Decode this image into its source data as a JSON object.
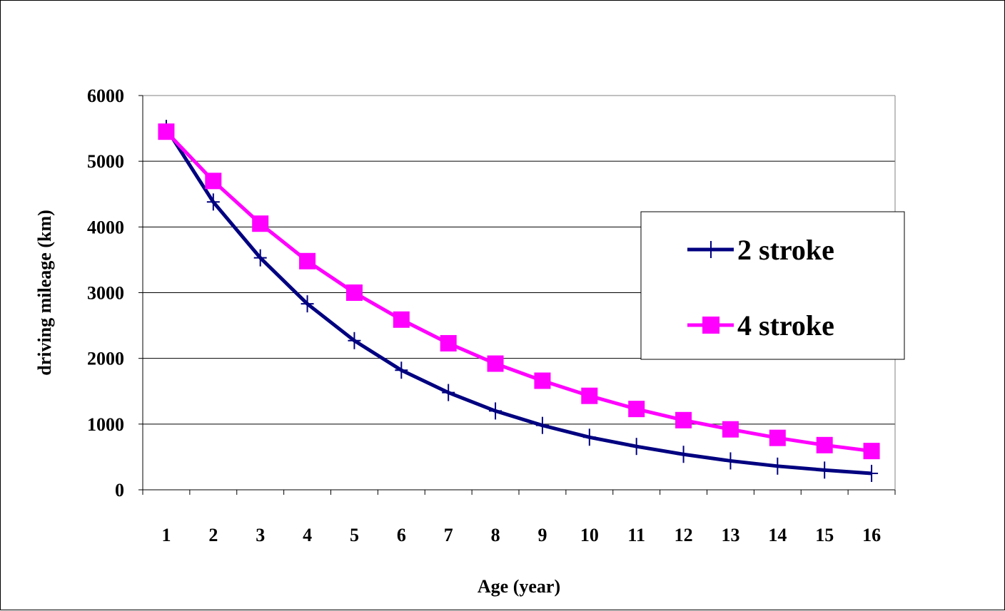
{
  "chart_data": {
    "type": "line",
    "title": "",
    "xlabel": "Age (year)",
    "ylabel": "driving mileage (km)",
    "categories": [
      "1",
      "2",
      "3",
      "4",
      "5",
      "6",
      "7",
      "8",
      "9",
      "10",
      "11",
      "12",
      "13",
      "14",
      "15",
      "16"
    ],
    "ylim": [
      0,
      6000
    ],
    "y_ticks": [
      "0",
      "1000",
      "2000",
      "3000",
      "4000",
      "5000",
      "6000"
    ],
    "grid": "horizontal",
    "legend_position": "right",
    "series": [
      {
        "name": "2 stroke",
        "color": "#000080",
        "marker": "plus",
        "values": [
          5500,
          4380,
          3530,
          2830,
          2270,
          1820,
          1480,
          1200,
          980,
          800,
          660,
          540,
          440,
          360,
          300,
          250
        ]
      },
      {
        "name": "4 stroke",
        "color": "#FF00FF",
        "marker": "square",
        "values": [
          5450,
          4700,
          4050,
          3480,
          3000,
          2590,
          2230,
          1920,
          1660,
          1430,
          1230,
          1060,
          920,
          790,
          680,
          590
        ]
      }
    ]
  }
}
